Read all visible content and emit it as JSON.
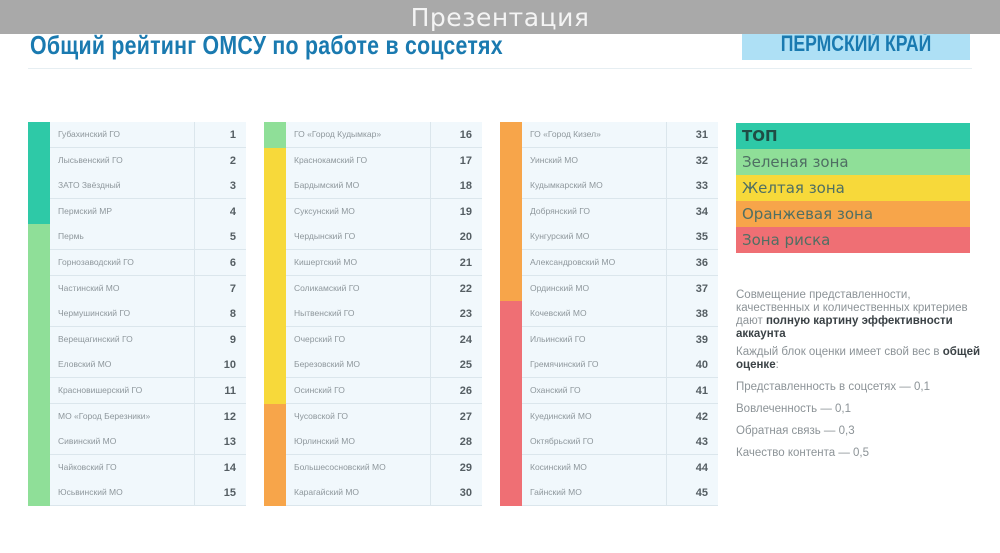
{
  "window": {
    "title": "Презентация"
  },
  "header": {
    "title": "Общий рейтинг ОМСУ по работе в соцсетях",
    "region": "ПЕРМСКИЙ КРАЙ"
  },
  "colors": {
    "top": "#2ec9a7",
    "green": "#8fdf98",
    "yellow": "#f7d93a",
    "orange": "#f7a54a",
    "risk": "#ef6f74",
    "title": "#1a7ab0",
    "badge_bg": "#aee0f5"
  },
  "columns": [
    {
      "rows": [
        {
          "name": "Губахинский ГО",
          "rank": "1",
          "zone": "top"
        },
        {
          "name": "Лысьвенский ГО",
          "rank": "2",
          "zone": "top"
        },
        {
          "name": "ЗАТО Звёздный",
          "rank": "3",
          "zone": "top"
        },
        {
          "name": "Пермский МР",
          "rank": "4",
          "zone": "top"
        },
        {
          "name": "Пермь",
          "rank": "5",
          "zone": "green"
        },
        {
          "name": "Горнозаводский ГО",
          "rank": "6",
          "zone": "green"
        },
        {
          "name": "Частинский МО",
          "rank": "7",
          "zone": "green"
        },
        {
          "name": "Чермушинский ГО",
          "rank": "8",
          "zone": "green"
        },
        {
          "name": "Верещагинский ГО",
          "rank": "9",
          "zone": "green"
        },
        {
          "name": "Еловский МО",
          "rank": "10",
          "zone": "green"
        },
        {
          "name": "Красновишерский ГО",
          "rank": "11",
          "zone": "green"
        },
        {
          "name": "МО «Город Березники»",
          "rank": "12",
          "zone": "green"
        },
        {
          "name": "Сивинский МО",
          "rank": "13",
          "zone": "green"
        },
        {
          "name": "Чайковский ГО",
          "rank": "14",
          "zone": "green"
        },
        {
          "name": "Юсьвинский МО",
          "rank": "15",
          "zone": "green"
        }
      ]
    },
    {
      "rows": [
        {
          "name": "ГО «Город Кудымкар»",
          "rank": "16",
          "zone": "green"
        },
        {
          "name": "Краснокамский ГО",
          "rank": "17",
          "zone": "yellow"
        },
        {
          "name": "Бардымский МО",
          "rank": "18",
          "zone": "yellow"
        },
        {
          "name": "Суксунский МО",
          "rank": "19",
          "zone": "yellow"
        },
        {
          "name": "Чердынский ГО",
          "rank": "20",
          "zone": "yellow"
        },
        {
          "name": "Кишертский МО",
          "rank": "21",
          "zone": "yellow"
        },
        {
          "name": "Соликамский ГО",
          "rank": "22",
          "zone": "yellow"
        },
        {
          "name": "Нытвенский ГО",
          "rank": "23",
          "zone": "yellow"
        },
        {
          "name": "Очерский ГО",
          "rank": "24",
          "zone": "yellow"
        },
        {
          "name": "Березовский МО",
          "rank": "25",
          "zone": "yellow"
        },
        {
          "name": "Осинский ГО",
          "rank": "26",
          "zone": "yellow"
        },
        {
          "name": "Чусовской ГО",
          "rank": "27",
          "zone": "orange"
        },
        {
          "name": "Юрлинский МО",
          "rank": "28",
          "zone": "orange"
        },
        {
          "name": "Большесосновский МО",
          "rank": "29",
          "zone": "orange"
        },
        {
          "name": "Карагайский МО",
          "rank": "30",
          "zone": "orange"
        }
      ]
    },
    {
      "rows": [
        {
          "name": "ГО «Город Кизел»",
          "rank": "31",
          "zone": "orange"
        },
        {
          "name": "Уинский МО",
          "rank": "32",
          "zone": "orange"
        },
        {
          "name": "Кудымкарский МО",
          "rank": "33",
          "zone": "orange"
        },
        {
          "name": "Добрянский ГО",
          "rank": "34",
          "zone": "orange"
        },
        {
          "name": "Кунгурский МО",
          "rank": "35",
          "zone": "orange"
        },
        {
          "name": "Александровский МО",
          "rank": "36",
          "zone": "orange"
        },
        {
          "name": "Ординский МО",
          "rank": "37",
          "zone": "orange"
        },
        {
          "name": "Кочевский МО",
          "rank": "38",
          "zone": "risk"
        },
        {
          "name": "Ильинский ГО",
          "rank": "39",
          "zone": "risk"
        },
        {
          "name": "Гремячинский ГО",
          "rank": "40",
          "zone": "risk"
        },
        {
          "name": "Оханский ГО",
          "rank": "41",
          "zone": "risk"
        },
        {
          "name": "Куединский МО",
          "rank": "42",
          "zone": "risk"
        },
        {
          "name": "Октябрьский ГО",
          "rank": "43",
          "zone": "risk"
        },
        {
          "name": "Косинский МО",
          "rank": "44",
          "zone": "risk"
        },
        {
          "name": "Гайнский МО",
          "rank": "45",
          "zone": "risk"
        }
      ]
    }
  ],
  "legend": [
    {
      "label": "ТОП",
      "zone": "top"
    },
    {
      "label": "Зеленая зона",
      "zone": "green"
    },
    {
      "label": "Желтая зона",
      "zone": "yellow"
    },
    {
      "label": "Оранжевая зона",
      "zone": "orange"
    },
    {
      "label": "Зона риска",
      "zone": "risk"
    }
  ],
  "description": {
    "p1_text": "Совмещение представленности, качественных и количественных критериев дают ",
    "p1_bold": "полную картину эффективности аккаунта",
    "p2_text": "Каждый блок оценки имеет свой вес в ",
    "p2_bold": "общей оценке",
    "p2_end": ":"
  },
  "weights": [
    "Представленность в соцсетях — 0,1",
    "Вовлеченность — 0,1",
    "Обратная связь — 0,3",
    "Качество контента — 0,5"
  ]
}
